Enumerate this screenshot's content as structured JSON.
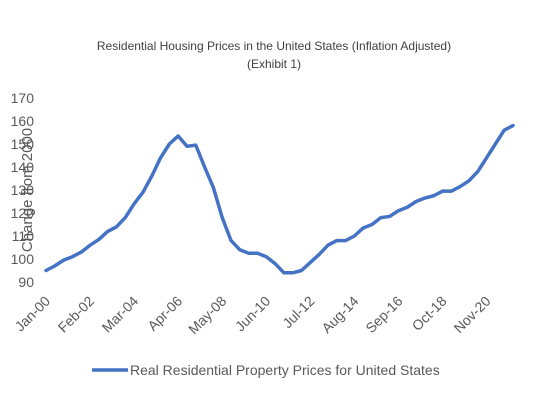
{
  "chart_data": {
    "type": "line",
    "title": "Residential Housing Prices in the United States (Inflation Adjusted)",
    "subtitle": "(Exhibit 1)",
    "y_label": "Change from 2000",
    "categories": [
      "Jan-00",
      null,
      null,
      null,
      null,
      "Feb-02",
      null,
      null,
      null,
      null,
      "Mar-04",
      null,
      null,
      null,
      null,
      "Apr-06",
      null,
      null,
      null,
      null,
      "May-08",
      null,
      null,
      null,
      null,
      "Jun-10",
      null,
      null,
      null,
      null,
      "Jul-12",
      null,
      null,
      null,
      null,
      "Aug-14",
      null,
      null,
      null,
      null,
      "Sep-16",
      null,
      null,
      null,
      null,
      "Oct-18",
      null,
      null,
      null,
      null,
      "Nov-20",
      null,
      null,
      null
    ],
    "series": [
      {
        "name": "Real Residential Property Prices for United States",
        "color": "#4472c4",
        "values": [
          95,
          97,
          99.5,
          101,
          103,
          106,
          108.5,
          112,
          114,
          118,
          124,
          129,
          136,
          144,
          150,
          153.5,
          149,
          149.5,
          140,
          131,
          118,
          108,
          104,
          102.5,
          102.5,
          101,
          98,
          94,
          94,
          95,
          98.5,
          102,
          106,
          108,
          108,
          110,
          113.5,
          115,
          118,
          118.5,
          121,
          122.5,
          125,
          126.5,
          127.5,
          129.5,
          129.5,
          131.5,
          134,
          138,
          144,
          150,
          156,
          158
        ]
      }
    ],
    "ylim": [
      90,
      170
    ],
    "yticks": [
      90,
      100,
      110,
      120,
      130,
      140,
      150,
      160,
      170
    ],
    "grid": false,
    "legend": "bottom"
  }
}
